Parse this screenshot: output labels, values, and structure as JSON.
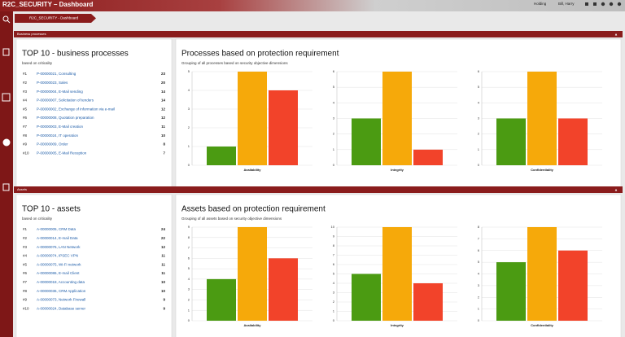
{
  "header": {
    "title": "R2C_SECURITY – Dashboard",
    "breadcrumb": "R2C_SECURITY - Dashboard",
    "tenant": "Holding",
    "user": "Bill, Harry"
  },
  "sections": [
    {
      "label": "Business processes",
      "top10": {
        "title": "TOP 10 - business processes",
        "subtitle": "based on criticality",
        "rows": [
          {
            "rank": "#1",
            "name": "P-00000021, Consulting",
            "value": 23
          },
          {
            "rank": "#2",
            "name": "P-00000023, Sales",
            "value": 20
          },
          {
            "rank": "#3",
            "name": "P-00000004, E-Mail sending",
            "value": 14
          },
          {
            "rank": "#4",
            "name": "P-00000007, Solicitation of tenders",
            "value": 14
          },
          {
            "rank": "#5",
            "name": "P-00000002, Exchange of information via e-mail",
            "value": 12
          },
          {
            "rank": "#6",
            "name": "P-00000008, Quotation preparation",
            "value": 12
          },
          {
            "rank": "#7",
            "name": "P-00000003, E-Mail creation",
            "value": 11
          },
          {
            "rank": "#8",
            "name": "P-00000024, IT operation",
            "value": 10
          },
          {
            "rank": "#9",
            "name": "P-00000009, Order",
            "value": 8
          },
          {
            "rank": "#10",
            "name": "P-00000005, E-Mail Reception",
            "value": 7
          }
        ]
      },
      "charts": {
        "title": "Processes based on protection requirement",
        "subtitle": "Grouping of all processes based on security objective dimensions",
        "items": [
          {
            "type": "bar",
            "xlabel": "Availability",
            "values": [
              1,
              5,
              4
            ],
            "colors": [
              "#4b9b12",
              "#f6a90a",
              "#f2432a"
            ],
            "ylim": [
              0,
              5
            ],
            "yticks": [
              0,
              1,
              2,
              3,
              4,
              5
            ],
            "grid": true
          },
          {
            "type": "bar",
            "xlabel": "Integrity",
            "values": [
              3,
              6,
              1
            ],
            "colors": [
              "#4b9b12",
              "#f6a90a",
              "#f2432a"
            ],
            "ylim": [
              0,
              6
            ],
            "yticks": [
              0,
              1,
              2,
              3,
              4,
              5,
              6
            ],
            "grid": true
          },
          {
            "type": "bar",
            "xlabel": "Confidentiality",
            "values": [
              3,
              6,
              3
            ],
            "colors": [
              "#4b9b12",
              "#f6a90a",
              "#f2432a"
            ],
            "ylim": [
              0,
              6
            ],
            "yticks": [
              0,
              1,
              2,
              3,
              4,
              5,
              6
            ],
            "grid": true
          }
        ]
      }
    },
    {
      "label": "Assets",
      "top10": {
        "title": "TOP 10 - assets",
        "subtitle": "based on criticality",
        "rows": [
          {
            "rank": "#1",
            "name": "A-00000005, CRM Data",
            "value": 24
          },
          {
            "rank": "#2",
            "name": "A-00000014, E-mail Data",
            "value": 22
          },
          {
            "rank": "#3",
            "name": "A-00000076, LAN Network",
            "value": 12
          },
          {
            "rank": "#4",
            "name": "A-00000074, IPSEC VPN",
            "value": 11
          },
          {
            "rank": "#5",
            "name": "A-00000075, Wi-Fi network",
            "value": 11
          },
          {
            "rank": "#6",
            "name": "A-00000086, E-mail Client",
            "value": 11
          },
          {
            "rank": "#7",
            "name": "A-00000018, Accounting data",
            "value": 10
          },
          {
            "rank": "#8",
            "name": "A-00000036, CRM Application",
            "value": 10
          },
          {
            "rank": "#9",
            "name": "A-00000073, Network Firewall",
            "value": 9
          },
          {
            "rank": "#10",
            "name": "A-00000024, Database server",
            "value": 9
          }
        ]
      },
      "charts": {
        "title": "Assets based on protection requirement",
        "subtitle": "Grouping of all assets based on security objective dimensions",
        "items": [
          {
            "type": "bar",
            "xlabel": "Availability",
            "values": [
              4,
              9,
              6
            ],
            "colors": [
              "#4b9b12",
              "#f6a90a",
              "#f2432a"
            ],
            "ylim": [
              0,
              9
            ],
            "yticks": [
              0,
              1,
              2,
              3,
              4,
              5,
              6,
              7,
              8,
              9
            ],
            "grid": true
          },
          {
            "type": "bar",
            "xlabel": "Integrity",
            "values": [
              5,
              10,
              4
            ],
            "colors": [
              "#4b9b12",
              "#f6a90a",
              "#f2432a"
            ],
            "ylim": [
              0,
              10
            ],
            "yticks": [
              0,
              1,
              2,
              3,
              4,
              5,
              6,
              7,
              8,
              9,
              10
            ],
            "grid": true
          },
          {
            "type": "bar",
            "xlabel": "Confidentiality",
            "values": [
              5,
              8,
              6
            ],
            "colors": [
              "#4b9b12",
              "#f6a90a",
              "#f2432a"
            ],
            "ylim": [
              0,
              8
            ],
            "yticks": [
              0,
              1,
              2,
              3,
              4,
              5,
              6,
              7,
              8
            ],
            "grid": true
          }
        ]
      }
    }
  ]
}
